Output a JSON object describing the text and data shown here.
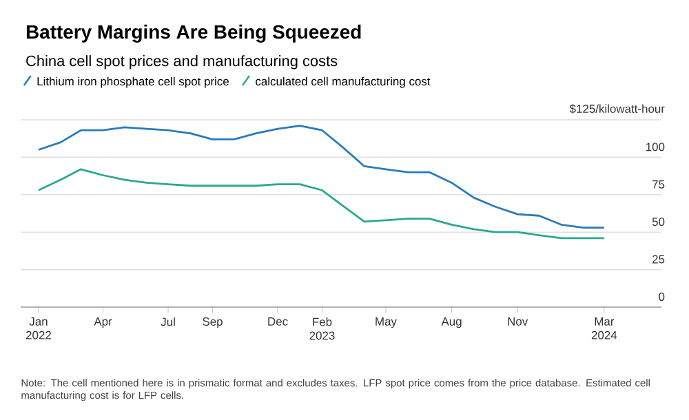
{
  "chart_data": {
    "type": "line",
    "title": "Battery Margins Are Being Squeezed",
    "subtitle": "China cell spot prices and manufacturing costs",
    "x": [
      "2022-01",
      "2022-02",
      "2022-03",
      "2022-04",
      "2022-05",
      "2022-06",
      "2022-07",
      "2022-08",
      "2022-09",
      "2022-10",
      "2022-11",
      "2022-12",
      "2023-01",
      "2023-02",
      "2023-03",
      "2023-04",
      "2023-05",
      "2023-06",
      "2023-07",
      "2023-08",
      "2023-09",
      "2023-10",
      "2023-11",
      "2023-12",
      "2024-01",
      "2024-02",
      "2024-03"
    ],
    "series": [
      {
        "name": "Lithium iron phosphate cell spot price",
        "color": "#2b7bb9",
        "values": [
          105,
          110,
          118,
          118,
          120,
          119,
          118,
          116,
          112,
          112,
          116,
          119,
          121,
          118,
          107,
          94,
          92,
          90,
          90,
          83,
          73,
          67,
          62,
          61,
          55,
          53,
          53
        ]
      },
      {
        "name": "calculated cell manufacturing cost",
        "color": "#2aa893",
        "values": [
          78,
          85,
          92,
          88,
          85,
          83,
          82,
          81,
          81,
          81,
          81,
          82,
          82,
          78,
          68,
          57,
          58,
          59,
          59,
          55,
          52,
          50,
          50,
          48,
          46,
          46,
          46
        ]
      }
    ],
    "xlim": [
      "2021-12-07",
      "2024-05-20"
    ],
    "xticks": [
      {
        "value": "2022-01",
        "label": "Jan 2022"
      },
      {
        "value": "2022-04",
        "label": "Apr"
      },
      {
        "value": "2022-07",
        "label": "Jul"
      },
      {
        "value": "2022-09",
        "label": "Sep"
      },
      {
        "value": "2022-12",
        "label": "Dec"
      },
      {
        "value": "2023-02",
        "label": "Feb 2023"
      },
      {
        "value": "2023-05",
        "label": "May"
      },
      {
        "value": "2023-08",
        "label": "Aug"
      },
      {
        "value": "2023-11",
        "label": "Nov"
      },
      {
        "value": "2024-03",
        "label": "Mar 2024"
      }
    ],
    "ylim": [
      0,
      125
    ],
    "yticks": [
      0,
      25,
      50,
      75,
      100,
      {
        "value": 125,
        "label": "$125/kilowatt-hour"
      }
    ],
    "grid": "y",
    "legend": "top",
    "line_style": "solid",
    "marker": "none",
    "annotations": [
      "Note: The cell mentioned here is in prismatic format and excludes taxes. LFP spot price comes from the price database. Estimated cell manufacturing cost is for LFP cells."
    ]
  }
}
